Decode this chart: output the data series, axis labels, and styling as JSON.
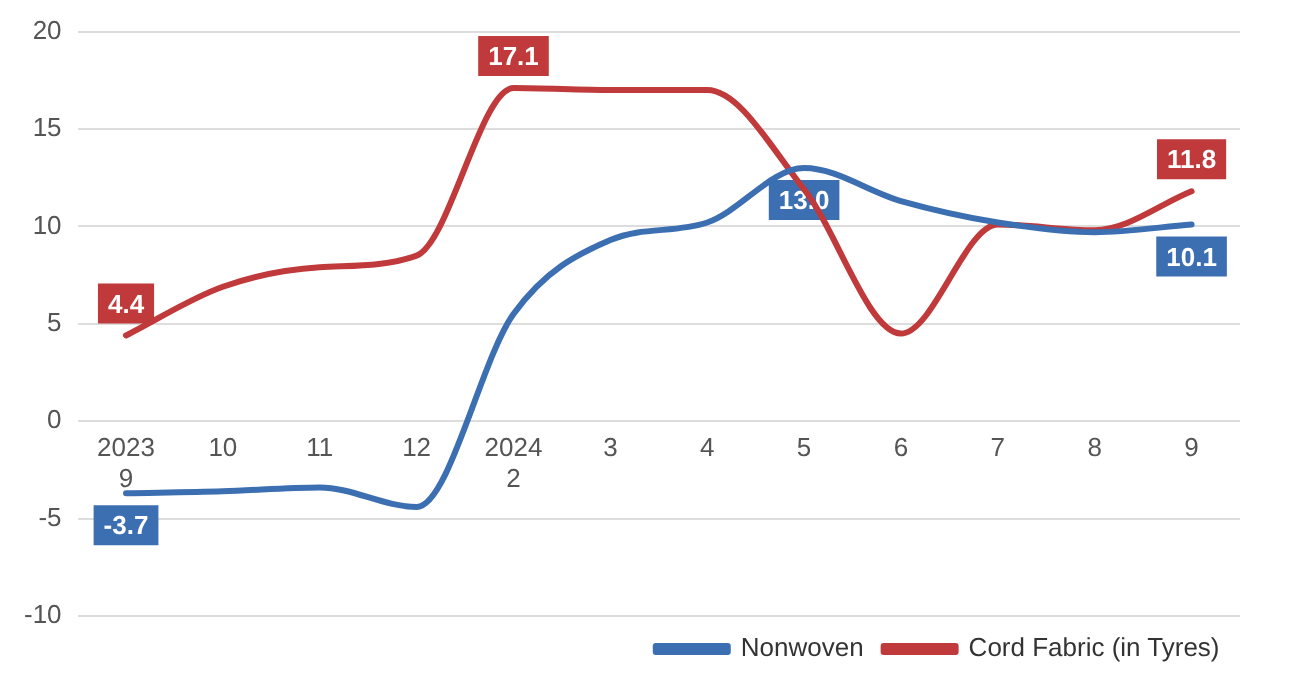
{
  "chart_data": {
    "type": "line",
    "categories": [
      "2023\n9",
      "10",
      "11",
      "12",
      "2024\n2",
      "3",
      "4",
      "5",
      "6",
      "7",
      "8",
      "9"
    ],
    "series": [
      {
        "name": "Nonwoven",
        "color": "#3c6fb1",
        "values": [
          -3.7,
          -3.6,
          -3.4,
          -4.4,
          5.5,
          9.3,
          10.2,
          13.0,
          11.3,
          10.2,
          9.7,
          10.1
        ],
        "value_labels": [
          "-3.7",
          null,
          null,
          null,
          null,
          null,
          null,
          "13.0",
          null,
          null,
          null,
          "10.1"
        ]
      },
      {
        "name": "Cord Fabric (in Tyres)",
        "color": "#c0393b",
        "values": [
          4.4,
          6.9,
          7.9,
          8.5,
          17.1,
          17.0,
          17.0,
          11.9,
          4.5,
          10.1,
          9.8,
          11.8
        ],
        "value_labels": [
          "4.4",
          null,
          null,
          null,
          "17.1",
          null,
          null,
          null,
          null,
          null,
          null,
          "11.8"
        ]
      }
    ],
    "ylim": [
      -10,
      20
    ],
    "yticks": [
      -10,
      -5,
      0,
      5,
      10,
      15,
      20
    ],
    "grid": "y",
    "legend": "bottom",
    "marker": "none",
    "line_style": "solid"
  }
}
